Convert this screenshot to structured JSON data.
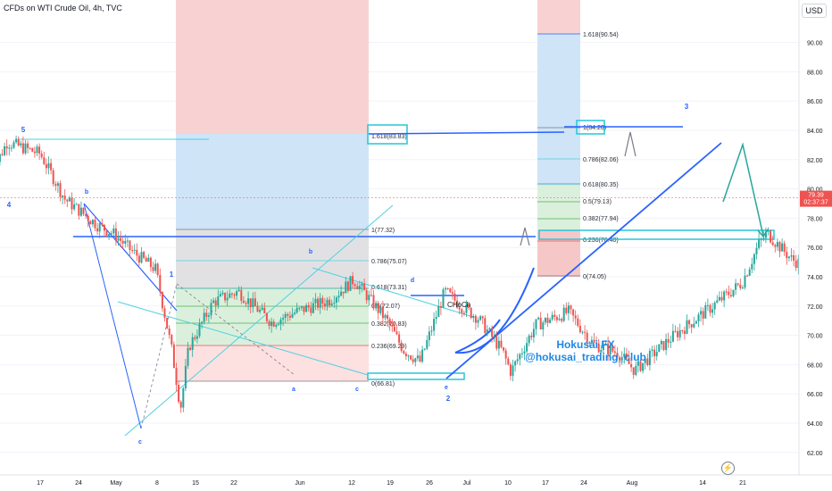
{
  "header": {
    "title": "CFDs on WTI Crude Oil, 4h, TVC",
    "currency": "USD"
  },
  "price_tag": {
    "value": "79.39",
    "countdown": "02:37:37"
  },
  "watermark": {
    "line1": "Hokusai FX",
    "line2": "@hokusai_trading_club"
  },
  "icons": {
    "bolt": "lightning-icon"
  },
  "colors": {
    "up": "#26a69a",
    "down": "#ef5350",
    "wave": "#2962ff",
    "cyan": "#4dd0e1",
    "label": "#1e88e5"
  },
  "chart_data": {
    "type": "candlestick",
    "title": "CFDs on WTI Crude Oil, 4h, TVC",
    "y_axis": {
      "side": "right",
      "ylim": [
        61,
        93
      ],
      "ticks": [
        "62.00",
        "64.00",
        "66.00",
        "68.00",
        "70.00",
        "72.00",
        "74.00",
        "76.00",
        "78.00",
        "80.00",
        "82.00",
        "84.00",
        "86.00",
        "88.00",
        "90.00"
      ]
    },
    "x_axis": {
      "ticks": [
        "17",
        "24",
        "May",
        "8",
        "15",
        "22",
        "Jun",
        "12",
        "19",
        "26",
        "Jul",
        "10",
        "17",
        "24",
        "Aug",
        "14",
        "21"
      ]
    },
    "price_path": [
      {
        "x": "Apr 11",
        "y": 81.0
      },
      {
        "x": "Apr 13",
        "y": 83.2
      },
      {
        "x": "Apr 17",
        "y": 82.4
      },
      {
        "x": "Apr 20",
        "y": 79.3
      },
      {
        "x": "Apr 24",
        "y": 77.5
      },
      {
        "x": "Apr 26",
        "y": 76.9
      },
      {
        "x": "Apr 28",
        "y": 75.8
      },
      {
        "x": "May 1",
        "y": 74.5
      },
      {
        "x": "May 3",
        "y": 68.8
      },
      {
        "x": "May 4",
        "y": 65.0
      },
      {
        "x": "May 5",
        "y": 69.2
      },
      {
        "x": "May 8",
        "y": 72.3
      },
      {
        "x": "May 11",
        "y": 73.0
      },
      {
        "x": "May 15",
        "y": 70.9
      },
      {
        "x": "May 18",
        "y": 71.6
      },
      {
        "x": "May 22",
        "y": 72.4
      },
      {
        "x": "May 25",
        "y": 73.8
      },
      {
        "x": "May 29",
        "y": 71.0
      },
      {
        "x": "May 31",
        "y": 69.0
      },
      {
        "x": "Jun 2",
        "y": 68.2
      },
      {
        "x": "Jun 5",
        "y": 73.0
      },
      {
        "x": "Jun 7",
        "y": 72.0
      },
      {
        "x": "Jun 9",
        "y": 71.2
      },
      {
        "x": "Jun 12",
        "y": 68.9
      },
      {
        "x": "Jun 13",
        "y": 67.5
      },
      {
        "x": "Jun 16",
        "y": 70.7
      },
      {
        "x": "Jun 20",
        "y": 71.6
      },
      {
        "x": "Jun 23",
        "y": 69.4
      },
      {
        "x": "Jun 26",
        "y": 68.8
      },
      {
        "x": "Jun 28",
        "y": 67.6
      },
      {
        "x": "Jul 3",
        "y": 70.1
      },
      {
        "x": "Jul 7",
        "y": 71.8
      },
      {
        "x": "Jul 11",
        "y": 73.6
      },
      {
        "x": "Jul 13",
        "y": 76.2
      },
      {
        "x": "Jul 14",
        "y": 77.0
      },
      {
        "x": "Jul 17",
        "y": 75.2
      },
      {
        "x": "Jul 19",
        "y": 74.6
      },
      {
        "x": "Jul 21",
        "y": 75.8
      },
      {
        "x": "Jul 24",
        "y": 77.9
      },
      {
        "x": "Jul 27",
        "y": 80.2
      },
      {
        "x": "Aug 1",
        "y": 81.5
      },
      {
        "x": "Aug 3",
        "y": 80.9
      },
      {
        "x": "Aug 7",
        "y": 82.4
      },
      {
        "x": "Aug 10",
        "y": 84.3
      },
      {
        "x": "Aug 14",
        "y": 82.5
      },
      {
        "x": "Aug 16",
        "y": 80.7
      },
      {
        "x": "Aug 18",
        "y": 79.4
      }
    ],
    "horizontal_lines": [
      83.6,
      76.8,
      72.6,
      84.3
    ],
    "wave_labels": [
      "5",
      "4",
      "b",
      "c",
      "1",
      "a",
      "b",
      "c",
      "d",
      "e",
      "2",
      "3"
    ],
    "fib_left": [
      "1.618(83.83)",
      "1(77.32)",
      "0.786(75.07)",
      "0.618(73.31)",
      "0.5(72.07)",
      "0.382(70.83)",
      "0.236(69.29)",
      "0(66.81)"
    ],
    "fib_right": [
      "1.618(90.54)",
      "1(84.20)",
      "0.786(82.06)",
      "0.618(80.35)",
      "0.5(79.13)",
      "0.382(77.94)",
      "0.236(76.40)",
      "0(74.05)"
    ],
    "annotations": [
      "CHoCh"
    ]
  }
}
